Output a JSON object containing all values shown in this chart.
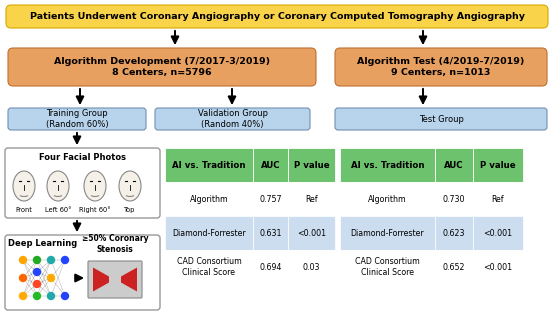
{
  "title": "Patients Underwent Coronary Angiography or Coronary Computed Tomography Angiography",
  "title_bg": "#F9D44A",
  "title_fg": "#000000",
  "box_dev_title": "Algorithm Development (7/2017-3/2019)\n8 Centers, n=5796",
  "box_test_title": "Algorithm Test (4/2019-7/2019)\n9 Centers, n=1013",
  "box_orange_bg": "#E8A060",
  "box_orange_fg": "#000000",
  "box_train_label": "Training Group\n(Random 60%)",
  "box_val_label": "Validation Group\n(Random 40%)",
  "box_test2_label": "Test Group",
  "box_blue_bg": "#B8D4EC",
  "box_blue_fg": "#000000",
  "table1_header": [
    "AI vs. Tradition",
    "AUC",
    "P value"
  ],
  "table1_rows": [
    [
      "Algorithm",
      "0.757",
      "Ref"
    ],
    [
      "Diamond-Forrester",
      "0.631",
      "<0.001"
    ],
    [
      "CAD Consortium\nClinical Score",
      "0.694",
      "0.03"
    ]
  ],
  "table2_header": [
    "AI vs. Tradition",
    "AUC",
    "P value"
  ],
  "table2_rows": [
    [
      "Algorithm",
      "0.730",
      "Ref"
    ],
    [
      "Diamond-Forrester",
      "0.623",
      "<0.001"
    ],
    [
      "CAD Consortium\nClinical Score",
      "0.652",
      "<0.001"
    ]
  ],
  "table_header_bg": "#6DC26D",
  "table_header_fg": "#000000",
  "table_row_bg1": "#FFFFFF",
  "table_row_bg2": "#CCDDF0",
  "photo_box_title": "Four Facial Photos",
  "photo_labels": [
    "Front",
    "Left 60°",
    "Right 60°",
    "Top"
  ],
  "dl_box_title": "Deep Learning",
  "stenosis_label": "≥50% Coronary\nStenosis",
  "arrow_color": "#111111",
  "background_color": "#FFFFFF"
}
